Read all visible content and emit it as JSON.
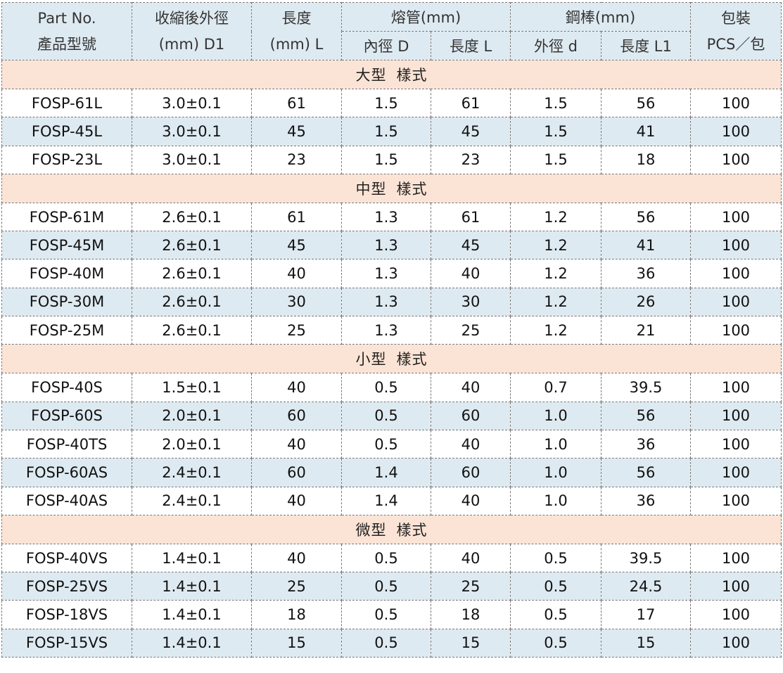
{
  "header": {
    "part_no_en": "Part No.",
    "part_no_zh": "產品型號",
    "shrunk_od_line1": "收縮後外徑",
    "shrunk_od_line2": "(mm) D1",
    "length_line1": "長度",
    "length_line2": "(mm) L",
    "tube_group": "熔管(mm)",
    "tube_id": "內徑 D",
    "tube_len": "長度 L",
    "rod_group": "鋼棒(mm)",
    "rod_od": "外徑 d",
    "rod_len": "長度 L1",
    "pack_line1": "包裝",
    "pack_line2": "PCS／包"
  },
  "sections": [
    {
      "title_a": "大型",
      "title_b": "樣式",
      "rows": [
        {
          "part": "FOSP-61L",
          "od": "3.0±0.1",
          "len": "61",
          "tube_d": "1.5",
          "tube_l": "61",
          "rod_d": "1.5",
          "rod_l": "56",
          "pcs": "100"
        },
        {
          "part": "FOSP-45L",
          "od": "3.0±0.1",
          "len": "45",
          "tube_d": "1.5",
          "tube_l": "45",
          "rod_d": "1.5",
          "rod_l": "41",
          "pcs": "100"
        },
        {
          "part": "FOSP-23L",
          "od": "3.0±0.1",
          "len": "23",
          "tube_d": "1.5",
          "tube_l": "23",
          "rod_d": "1.5",
          "rod_l": "18",
          "pcs": "100"
        }
      ]
    },
    {
      "title_a": "中型",
      "title_b": "樣式",
      "rows": [
        {
          "part": "FOSP-61M",
          "od": "2.6±0.1",
          "len": "61",
          "tube_d": "1.3",
          "tube_l": "61",
          "rod_d": "1.2",
          "rod_l": "56",
          "pcs": "100"
        },
        {
          "part": "FOSP-45M",
          "od": "2.6±0.1",
          "len": "45",
          "tube_d": "1.3",
          "tube_l": "45",
          "rod_d": "1.2",
          "rod_l": "41",
          "pcs": "100"
        },
        {
          "part": "FOSP-40M",
          "od": "2.6±0.1",
          "len": "40",
          "tube_d": "1.3",
          "tube_l": "40",
          "rod_d": "1.2",
          "rod_l": "36",
          "pcs": "100"
        },
        {
          "part": "FOSP-30M",
          "od": "2.6±0.1",
          "len": "30",
          "tube_d": "1.3",
          "tube_l": "30",
          "rod_d": "1.2",
          "rod_l": "26",
          "pcs": "100"
        },
        {
          "part": "FOSP-25M",
          "od": "2.6±0.1",
          "len": "25",
          "tube_d": "1.3",
          "tube_l": "25",
          "rod_d": "1.2",
          "rod_l": "21",
          "pcs": "100"
        }
      ]
    },
    {
      "title_a": "小型",
      "title_b": "樣式",
      "rows": [
        {
          "part": "FOSP-40S",
          "od": "1.5±0.1",
          "len": "40",
          "tube_d": "0.5",
          "tube_l": "40",
          "rod_d": "0.7",
          "rod_l": "39.5",
          "pcs": "100"
        },
        {
          "part": "FOSP-60S",
          "od": "2.0±0.1",
          "len": "60",
          "tube_d": "0.5",
          "tube_l": "60",
          "rod_d": "1.0",
          "rod_l": "56",
          "pcs": "100"
        },
        {
          "part": "FOSP-40TS",
          "od": "2.0±0.1",
          "len": "40",
          "tube_d": "0.5",
          "tube_l": "40",
          "rod_d": "1.0",
          "rod_l": "36",
          "pcs": "100"
        },
        {
          "part": "FOSP-60AS",
          "od": "2.4±0.1",
          "len": "60",
          "tube_d": "1.4",
          "tube_l": "60",
          "rod_d": "1.0",
          "rod_l": "56",
          "pcs": "100"
        },
        {
          "part": "FOSP-40AS",
          "od": "2.4±0.1",
          "len": "40",
          "tube_d": "1.4",
          "tube_l": "40",
          "rod_d": "1.0",
          "rod_l": "36",
          "pcs": "100"
        }
      ]
    },
    {
      "title_a": "微型",
      "title_b": "樣式",
      "rows": [
        {
          "part": "FOSP-40VS",
          "od": "1.4±0.1",
          "len": "40",
          "tube_d": "0.5",
          "tube_l": "40",
          "rod_d": "0.5",
          "rod_l": "39.5",
          "pcs": "100"
        },
        {
          "part": "FOSP-25VS",
          "od": "1.4±0.1",
          "len": "25",
          "tube_d": "0.5",
          "tube_l": "25",
          "rod_d": "0.5",
          "rod_l": "24.5",
          "pcs": "100"
        },
        {
          "part": "FOSP-18VS",
          "od": "1.4±0.1",
          "len": "18",
          "tube_d": "0.5",
          "tube_l": "18",
          "rod_d": "0.5",
          "rod_l": "17",
          "pcs": "100"
        },
        {
          "part": "FOSP-15VS",
          "od": "1.4±0.1",
          "len": "15",
          "tube_d": "0.5",
          "tube_l": "15",
          "rod_d": "0.5",
          "rod_l": "15",
          "pcs": "100"
        }
      ]
    }
  ],
  "colors": {
    "header_bg": "#deeaf1",
    "section_bg": "#fbe4d5",
    "alt_row_bg": "#deeaf1",
    "border": "#777777"
  }
}
